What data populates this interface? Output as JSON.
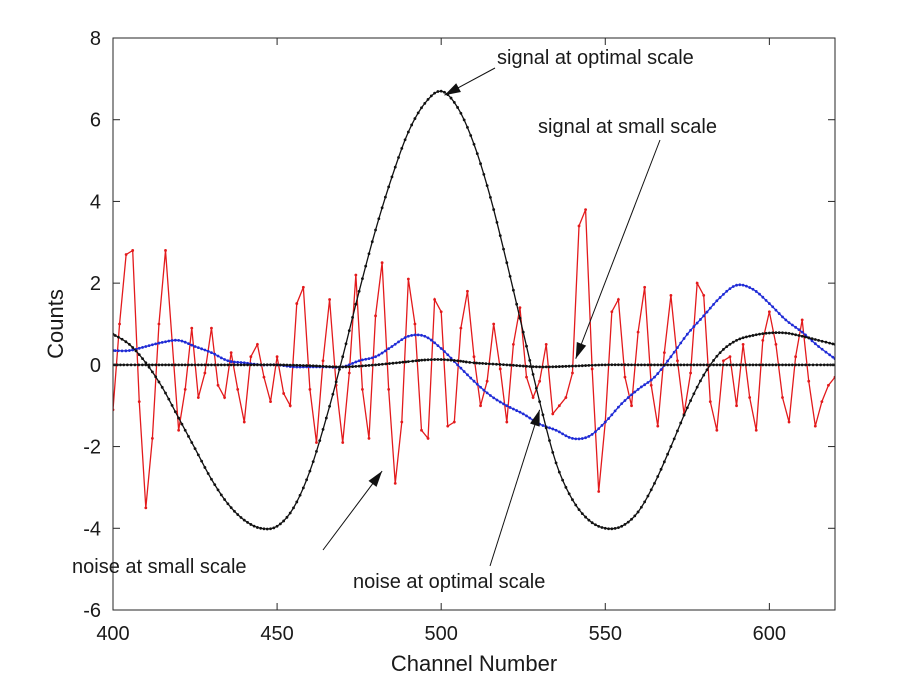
{
  "chart_data": {
    "type": "line",
    "title": "",
    "xlabel": "Channel Number",
    "ylabel": "Counts",
    "xlim": [
      400,
      620
    ],
    "ylim": [
      -6,
      8
    ],
    "xticks": [
      400,
      450,
      500,
      550,
      600
    ],
    "yticks": [
      -6,
      -4,
      -2,
      0,
      2,
      4,
      6,
      8
    ],
    "grid": false,
    "legend": "none",
    "series": [
      {
        "color": "#e31a1c",
        "marker": "dot",
        "x": [
          400,
          402,
          404,
          406,
          408,
          410,
          412,
          414,
          416,
          418,
          420,
          422,
          424,
          426,
          428,
          430,
          432,
          434,
          436,
          438,
          440,
          442,
          444,
          446,
          448,
          450,
          452,
          454,
          456,
          458,
          460,
          462,
          464,
          466,
          468,
          470,
          472,
          474,
          476,
          478,
          480,
          482,
          484,
          486,
          488,
          490,
          492,
          494,
          496,
          498,
          500,
          502,
          504,
          506,
          508,
          510,
          512,
          514,
          516,
          518,
          520,
          522,
          524,
          526,
          528,
          530,
          532,
          534,
          536,
          538,
          540,
          542,
          544,
          546,
          548,
          550,
          552,
          554,
          556,
          558,
          560,
          562,
          564,
          566,
          568,
          570,
          572,
          574,
          576,
          578,
          580,
          582,
          584,
          586,
          588,
          590,
          592,
          594,
          596,
          598,
          600,
          602,
          604,
          606,
          608,
          610,
          612,
          614,
          616,
          618,
          620
        ],
        "y": [
          -1.1,
          1.0,
          2.7,
          2.8,
          -0.9,
          -3.5,
          -1.8,
          1.0,
          2.8,
          0.6,
          -1.6,
          -0.6,
          0.9,
          -0.8,
          -0.2,
          0.9,
          -0.5,
          -0.8,
          0.3,
          -0.6,
          -1.4,
          0.2,
          0.5,
          -0.3,
          -0.9,
          0.2,
          -0.7,
          -1.0,
          1.5,
          1.9,
          -0.6,
          -1.9,
          0.1,
          1.6,
          -0.5,
          -1.9,
          -0.2,
          2.2,
          -0.6,
          -1.8,
          1.2,
          2.5,
          -0.6,
          -2.9,
          -1.4,
          2.1,
          1.0,
          -1.6,
          -1.8,
          1.6,
          1.3,
          -1.5,
          -1.4,
          0.9,
          1.8,
          0.2,
          -1.0,
          -0.4,
          1.0,
          -0.1,
          -1.4,
          0.5,
          1.4,
          -0.3,
          -0.8,
          -0.4,
          0.5,
          -1.2,
          -1.0,
          -0.8,
          -0.2,
          3.4,
          3.8,
          -0.1,
          -3.1,
          -1.4,
          1.3,
          1.6,
          -0.3,
          -1.0,
          0.8,
          1.9,
          -0.5,
          -1.5,
          0.3,
          1.7,
          0.1,
          -1.2,
          -0.2,
          2.0,
          1.7,
          -0.9,
          -1.6,
          0.1,
          0.2,
          -1.0,
          0.5,
          -0.8,
          -1.6,
          0.6,
          1.3,
          0.5,
          -0.8,
          -1.4,
          0.2,
          1.1,
          -0.4,
          -1.5,
          -0.9,
          -0.5,
          -0.3
        ]
      },
      {
        "color": "#1f2bd6",
        "marker": "dot",
        "x": [
          400,
          405,
          410,
          415,
          420,
          425,
          430,
          435,
          440,
          445,
          450,
          455,
          460,
          465,
          470,
          475,
          480,
          485,
          490,
          495,
          500,
          505,
          510,
          515,
          520,
          525,
          530,
          535,
          540,
          545,
          550,
          555,
          560,
          565,
          570,
          575,
          580,
          585,
          590,
          595,
          600,
          605,
          610,
          615,
          620
        ],
        "y": [
          0.35,
          0.35,
          0.45,
          0.55,
          0.6,
          0.45,
          0.3,
          0.1,
          0.05,
          0.0,
          0.0,
          -0.05,
          -0.05,
          -0.05,
          -0.05,
          0.1,
          0.2,
          0.45,
          0.7,
          0.7,
          0.4,
          0.0,
          -0.4,
          -0.75,
          -1.0,
          -1.2,
          -1.45,
          -1.6,
          -1.8,
          -1.75,
          -1.4,
          -0.95,
          -0.6,
          -0.3,
          0.2,
          0.75,
          1.2,
          1.65,
          1.95,
          1.85,
          1.5,
          1.1,
          0.8,
          0.45,
          0.15
        ]
      },
      {
        "color": "#111111",
        "marker": "dot",
        "x": [
          400,
          405,
          410,
          415,
          420,
          425,
          430,
          435,
          440,
          445,
          450,
          455,
          460,
          465,
          470,
          475,
          480,
          485,
          490,
          495,
          500,
          505,
          510,
          515,
          520,
          525,
          530,
          535,
          540,
          545,
          550,
          555,
          560,
          565,
          570,
          575,
          580,
          585,
          590,
          595,
          600,
          605,
          610,
          615,
          620
        ],
        "y": [
          0.75,
          0.5,
          0.05,
          -0.55,
          -1.3,
          -2.05,
          -2.8,
          -3.4,
          -3.8,
          -4.0,
          -3.95,
          -3.5,
          -2.6,
          -1.3,
          0.2,
          1.8,
          3.3,
          4.6,
          5.7,
          6.4,
          6.7,
          6.3,
          5.4,
          4.1,
          2.5,
          0.8,
          -0.9,
          -2.4,
          -3.3,
          -3.8,
          -4.0,
          -3.95,
          -3.6,
          -2.9,
          -2.0,
          -1.05,
          -0.25,
          0.3,
          0.6,
          0.72,
          0.78,
          0.78,
          0.7,
          0.6,
          0.5
        ]
      },
      {
        "color": "#111111",
        "marker": "dot",
        "x": [
          400,
          410,
          420,
          430,
          440,
          450,
          460,
          470,
          480,
          490,
          495,
          500,
          505,
          510,
          520,
          530,
          540,
          550,
          560,
          570,
          580,
          590,
          600,
          610,
          620
        ],
        "y": [
          0.0,
          0.0,
          0.0,
          0.0,
          0.0,
          0.0,
          -0.02,
          -0.05,
          0.0,
          0.08,
          0.12,
          0.13,
          0.1,
          0.05,
          0.0,
          -0.05,
          -0.03,
          0.0,
          0.0,
          0.0,
          0.0,
          0.0,
          0.0,
          0.0,
          0.0
        ]
      }
    ],
    "annotations": [
      {
        "text": "signal at optimal scale",
        "arrow_to": [
          501,
          6.6
        ]
      },
      {
        "text": "signal at small scale",
        "arrow_to": [
          541,
          0.15
        ]
      },
      {
        "text": "noise at small scale",
        "arrow_to": [
          482,
          -2.6
        ]
      },
      {
        "text": "noise at optimal scale",
        "arrow_to": [
          530,
          -1.1
        ]
      }
    ]
  }
}
